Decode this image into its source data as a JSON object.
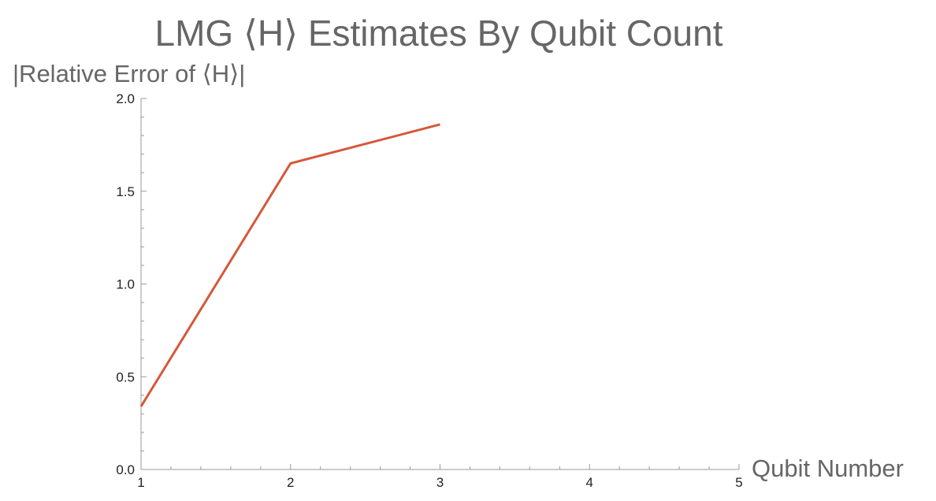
{
  "chart_data": {
    "type": "line",
    "title": "LMG ⟨H⟩ Estimates By Qubit Count",
    "xlabel": "Qubit Number",
    "ylabel": "|Relative Error of ⟨H⟩|",
    "xlim": [
      1,
      5
    ],
    "ylim": [
      0,
      2.0
    ],
    "xticks": [
      1,
      2,
      3,
      4,
      5
    ],
    "xtick_labels": [
      "1",
      "2",
      "3",
      "4",
      "5"
    ],
    "yticks": [
      0,
      0.5,
      1.0,
      1.5,
      2.0
    ],
    "ytick_labels": [
      "0.0",
      "0.5",
      "1.0",
      "1.5",
      "2.0"
    ],
    "grid": false,
    "series": [
      {
        "x": [
          1,
          2,
          3
        ],
        "values": [
          0.34,
          1.65,
          1.86
        ],
        "color": "#d5583a"
      }
    ]
  }
}
